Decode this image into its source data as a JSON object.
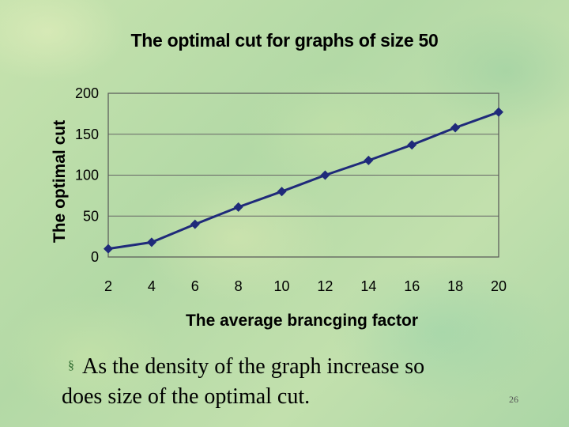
{
  "chart_data": {
    "type": "line",
    "title": "The optimal cut for graphs of size 50",
    "xlabel": "The average brancging factor",
    "ylabel": "The optimal cut",
    "x": [
      2,
      4,
      6,
      8,
      10,
      12,
      14,
      16,
      18,
      20
    ],
    "series": [
      {
        "name": "optimal cut",
        "values": [
          10,
          18,
          40,
          61,
          80,
          100,
          118,
          137,
          158,
          177
        ]
      }
    ],
    "xlim": [
      2,
      20
    ],
    "ylim": [
      0,
      200
    ],
    "yticks": [
      0,
      50,
      100,
      150,
      200
    ],
    "xticks": [
      2,
      4,
      6,
      8,
      10,
      12,
      14,
      16,
      18,
      20
    ],
    "grid": "horizontal",
    "line_color": "#1f2a7a",
    "marker": "diamond"
  },
  "slide": {
    "caption_line1": "As the density of the graph increase so",
    "caption_line2": "does size of the optimal cut.",
    "page_number": "26",
    "bullet_symbol": "§"
  }
}
